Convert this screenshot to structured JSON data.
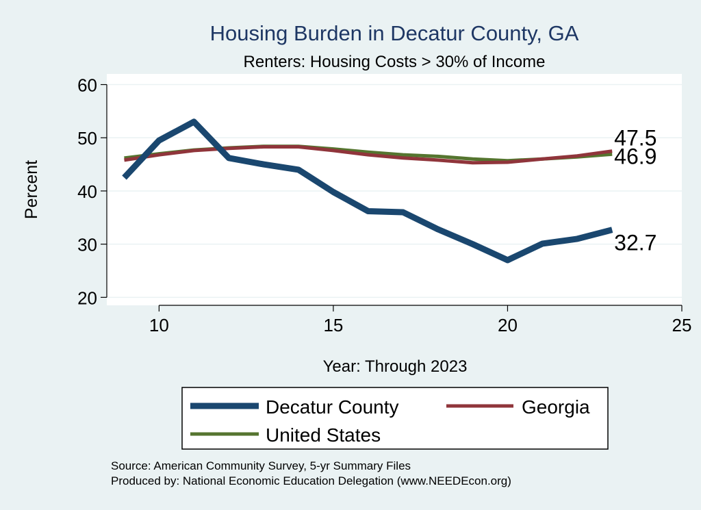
{
  "chart_data": {
    "type": "line",
    "title": "Housing Burden in Decatur County, GA",
    "subtitle": "Renters: Housing Costs > 30% of Income",
    "xlabel": "Year: Through 2023",
    "ylabel": "Percent",
    "xlim": [
      8.5,
      25
    ],
    "ylim": [
      18.5,
      62
    ],
    "xticks": [
      10,
      15,
      20,
      25
    ],
    "yticks": [
      20,
      30,
      40,
      50,
      60
    ],
    "grid": true,
    "x": [
      9,
      10,
      11,
      12,
      13,
      14,
      15,
      16,
      17,
      18,
      19,
      20,
      21,
      22,
      23
    ],
    "series": [
      {
        "name": "Decatur County",
        "color": "#1a476f",
        "values": [
          42.5,
          49.5,
          53.0,
          46.2,
          45.0,
          44.0,
          39.8,
          36.2,
          36.0,
          32.8,
          30.0,
          27.0,
          30.1,
          31.0,
          32.7
        ],
        "end_label": "32.7"
      },
      {
        "name": "Georgia",
        "color": "#90353b",
        "values": [
          45.8,
          46.8,
          47.6,
          48.0,
          48.3,
          48.3,
          47.6,
          46.8,
          46.2,
          45.8,
          45.3,
          45.4,
          46.0,
          46.6,
          47.5
        ],
        "end_label": "47.5"
      },
      {
        "name": "United States",
        "color": "#55752f",
        "values": [
          46.2,
          47.0,
          47.7,
          48.1,
          48.4,
          48.4,
          47.9,
          47.3,
          46.8,
          46.5,
          46.0,
          45.7,
          46.0,
          46.4,
          46.9
        ],
        "end_label": "46.9"
      }
    ],
    "legend": {
      "position": "bottom",
      "entries": [
        "Decatur County",
        "Georgia",
        "United States"
      ]
    },
    "notes": [
      "Source: American Community Survey, 5-yr Summary Files",
      "Produced by: National Economic Education Delegation (www.NEEDEcon.org)"
    ]
  }
}
